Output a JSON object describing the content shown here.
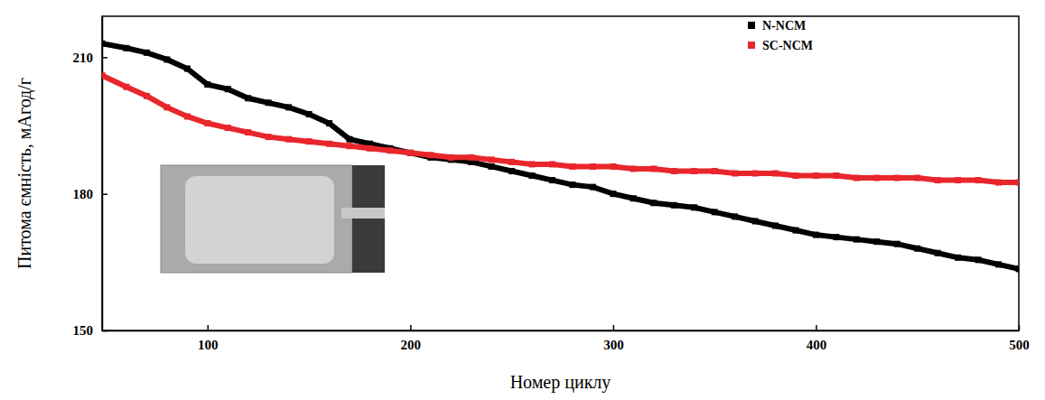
{
  "chart_data": {
    "type": "line",
    "x_label": "Номер циклу",
    "y_label": "Питома ємність, мАгод/г",
    "xlim": [
      48,
      500
    ],
    "xticks": [
      100,
      200,
      300,
      400,
      500
    ],
    "ylim": [
      150,
      219
    ],
    "yticks": [
      150,
      180,
      210
    ],
    "grid": false,
    "legend": "upper right",
    "x": [
      48,
      60,
      70,
      80,
      90,
      100,
      110,
      120,
      130,
      140,
      150,
      160,
      170,
      180,
      190,
      200,
      210,
      220,
      230,
      240,
      250,
      260,
      270,
      280,
      290,
      300,
      310,
      320,
      330,
      340,
      350,
      360,
      370,
      380,
      390,
      400,
      410,
      420,
      430,
      440,
      450,
      460,
      470,
      480,
      490,
      500
    ],
    "series": [
      {
        "name": "N-NCM",
        "color": "#000000",
        "marker": "square",
        "line_style": "solid",
        "values": [
          213,
          212,
          211,
          209.5,
          207.5,
          204,
          203,
          201,
          200,
          199,
          197.5,
          195.5,
          192,
          191,
          190,
          189,
          188,
          187.5,
          187,
          186,
          185,
          184,
          183,
          182,
          181.5,
          180,
          179,
          178,
          177.5,
          177,
          176,
          175,
          174,
          173,
          172,
          171,
          170.5,
          170,
          169.5,
          169,
          168,
          167,
          166,
          165.5,
          164.5,
          163.5
        ]
      },
      {
        "name": "SC-NCM",
        "color": "#e8262b",
        "marker": "square",
        "line_style": "solid",
        "values": [
          206,
          203.5,
          201.5,
          199,
          197,
          195.5,
          194.5,
          193.5,
          192.5,
          192,
          191.5,
          191,
          190.5,
          190,
          189.5,
          189,
          188.5,
          188,
          188,
          187.5,
          187,
          186.5,
          186.5,
          186,
          186,
          186,
          185.5,
          185.5,
          185,
          185,
          185,
          184.5,
          184.5,
          184.5,
          184,
          184,
          184,
          183.5,
          183.5,
          183.5,
          183.5,
          183,
          183,
          183,
          182.5,
          182.5
        ]
      }
    ]
  }
}
